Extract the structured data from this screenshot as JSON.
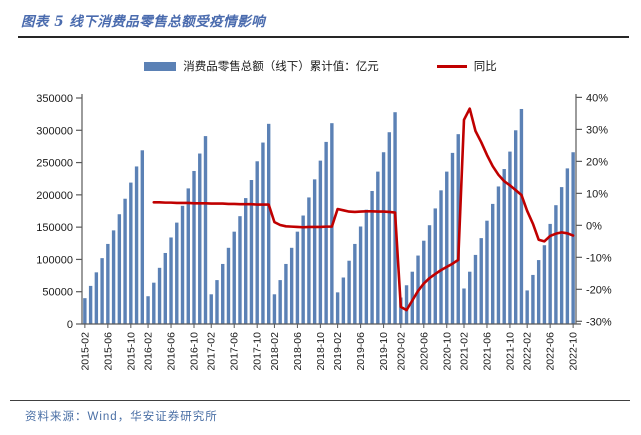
{
  "header": {
    "title": "图表 5 线下消费品零售总额受疫情影响"
  },
  "legend": {
    "bar_label": "消费品零售总额（线下）累计值：亿元",
    "line_label": "同比"
  },
  "footer": {
    "source": "资料来源：Wind，华安证券研究所"
  },
  "colors": {
    "title": "#4a6bae",
    "title_rule": "#262626",
    "bar": "#5b81b5",
    "line": "#c00000",
    "axis": "#595959",
    "axis_text": "#1a1a1a",
    "source_text": "#4a6fa5",
    "footer_rule": "#404040"
  },
  "chart_data": {
    "type": "bar",
    "title": "线下消费品零售总额受疫情影响",
    "legend_position": "top",
    "grid": false,
    "x": [
      "2015-02",
      "2015-03",
      "2015-04",
      "2015-05",
      "2015-06",
      "2015-07",
      "2015-08",
      "2015-09",
      "2015-10",
      "2015-11",
      "2015-12",
      "2016-02",
      "2016-03",
      "2016-04",
      "2016-05",
      "2016-06",
      "2016-07",
      "2016-08",
      "2016-09",
      "2016-10",
      "2016-11",
      "2016-12",
      "2017-02",
      "2017-03",
      "2017-04",
      "2017-05",
      "2017-06",
      "2017-07",
      "2017-08",
      "2017-09",
      "2017-10",
      "2017-11",
      "2017-12",
      "2018-02",
      "2018-03",
      "2018-04",
      "2018-05",
      "2018-06",
      "2018-07",
      "2018-08",
      "2018-09",
      "2018-10",
      "2018-11",
      "2018-12",
      "2019-02",
      "2019-03",
      "2019-04",
      "2019-05",
      "2019-06",
      "2019-07",
      "2019-08",
      "2019-09",
      "2019-10",
      "2019-11",
      "2019-12",
      "2020-02",
      "2020-03",
      "2020-04",
      "2020-05",
      "2020-06",
      "2020-07",
      "2020-08",
      "2020-09",
      "2020-10",
      "2020-11",
      "2020-12",
      "2021-02",
      "2021-03",
      "2021-04",
      "2021-05",
      "2021-06",
      "2021-07",
      "2021-08",
      "2021-09",
      "2021-10",
      "2021-11",
      "2021-12",
      "2022-02",
      "2022-03",
      "2022-04",
      "2022-05",
      "2022-06",
      "2022-07",
      "2022-08",
      "2022-09",
      "2022-10"
    ],
    "series": [
      {
        "name": "消费品零售总额（线下）累计值：亿元",
        "type": "bar",
        "axis": "left",
        "unit": "亿元",
        "values": [
          40000,
          59000,
          80000,
          102000,
          124000,
          145000,
          170000,
          194000,
          219000,
          244000,
          269000,
          43000,
          64000,
          87000,
          110000,
          134000,
          157000,
          183000,
          210000,
          237000,
          264000,
          291000,
          46000,
          68000,
          93000,
          118000,
          143000,
          167000,
          195000,
          223000,
          252000,
          281000,
          310000,
          46000,
          68000,
          93000,
          118000,
          143000,
          168000,
          196000,
          224000,
          253000,
          282000,
          311000,
          49000,
          72000,
          98000,
          124000,
          151000,
          177000,
          206000,
          236000,
          266000,
          297000,
          328000,
          41000,
          60000,
          81000,
          106000,
          129000,
          153000,
          179000,
          207000,
          236000,
          265000,
          294000,
          55000,
          81000,
          107000,
          133000,
          160000,
          186000,
          213000,
          240000,
          267000,
          300000,
          333000,
          52000,
          76000,
          99000,
          122000,
          155000,
          184000,
          212000,
          241000,
          266000
        ]
      },
      {
        "name": "同比",
        "type": "line",
        "axis": "right",
        "unit": "%",
        "values": [
          null,
          null,
          null,
          null,
          null,
          null,
          null,
          null,
          null,
          null,
          null,
          null,
          7.2,
          7.2,
          7.1,
          7.1,
          7.0,
          7.0,
          7.0,
          6.9,
          6.9,
          6.9,
          6.8,
          6.8,
          6.8,
          6.7,
          6.7,
          6.6,
          6.6,
          6.6,
          6.5,
          6.5,
          6.5,
          1.0,
          0.1,
          -0.3,
          -0.4,
          -0.5,
          -0.6,
          -0.5,
          -0.5,
          -0.5,
          -0.4,
          -0.4,
          5.1,
          4.7,
          4.3,
          4.2,
          4.3,
          4.4,
          4.4,
          4.3,
          4.3,
          4.2,
          4.0,
          -25.5,
          -26.5,
          -23.5,
          -20.5,
          -18.2,
          -16.5,
          -15.2,
          -14.0,
          -13.0,
          -12.0,
          -10.8,
          33.0,
          36.5,
          29.5,
          26.0,
          22.0,
          18.5,
          15.8,
          13.8,
          12.5,
          11.0,
          9.5,
          4.5,
          0.5,
          -4.5,
          -5.0,
          -3.3,
          -2.6,
          -2.2,
          -2.5,
          -3.2
        ]
      }
    ],
    "left_axis": {
      "min": 0,
      "max": 350000,
      "tick_labels": [
        "350000",
        "300000",
        "250000",
        "200000",
        "150000",
        "100000",
        "50000",
        "0"
      ]
    },
    "right_axis": {
      "min": -30,
      "max": 40,
      "tick_labels": [
        "40%",
        "30%",
        "20%",
        "10%",
        "0%",
        "-10%",
        "-20%",
        "-30%"
      ]
    },
    "x_tick_labels": [
      "2015-02",
      "2015-06",
      "2015-10",
      "2016-02",
      "2016-06",
      "2016-10",
      "2017-02",
      "2017-06",
      "2017-10",
      "2018-02",
      "2018-06",
      "2018-10",
      "2019-02",
      "2019-06",
      "2019-10",
      "2020-02",
      "2020-06",
      "2020-10",
      "2021-02",
      "2021-06",
      "2021-10",
      "2022-02",
      "2022-06",
      "2022-10"
    ]
  }
}
